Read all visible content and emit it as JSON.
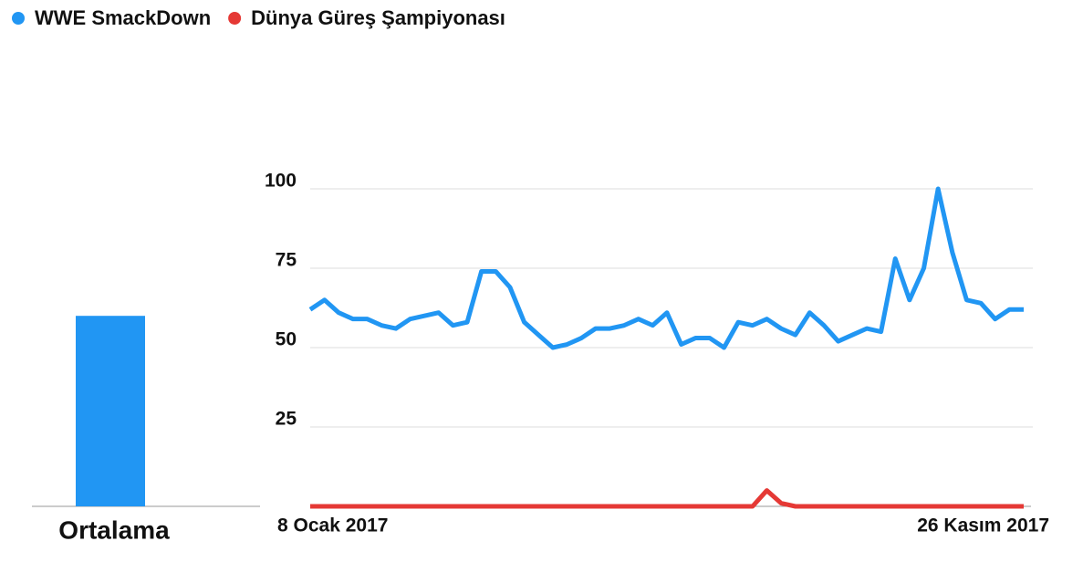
{
  "chart_data": [
    {
      "type": "bar",
      "categories": [
        "Ortalama"
      ],
      "ylim": [
        0,
        100
      ],
      "series": [
        {
          "color": "#2196f3",
          "values": [
            60
          ]
        },
        {
          "color": "#e53935",
          "values": [
            0
          ]
        }
      ]
    },
    {
      "type": "line",
      "categories": [
        "8 Ocak 2017",
        null,
        null,
        null,
        null,
        null,
        null,
        null,
        null,
        null,
        null,
        null,
        null,
        null,
        null,
        null,
        null,
        null,
        null,
        null,
        null,
        null,
        null,
        null,
        null,
        null,
        null,
        null,
        null,
        null,
        null,
        null,
        null,
        null,
        null,
        null,
        null,
        null,
        null,
        null,
        null,
        null,
        null,
        null,
        null,
        null,
        null,
        null,
        null,
        null,
        "26 Kasım 2017"
      ],
      "ylim": [
        0,
        100
      ],
      "yticks": [
        25,
        50,
        75,
        100
      ],
      "grid": true,
      "legend": "top-left",
      "series": [
        {
          "name": "WWE SmackDown",
          "color": "#2196f3",
          "values": [
            62,
            65,
            61,
            59,
            59,
            57,
            56,
            59,
            60,
            61,
            57,
            58,
            74,
            74,
            69,
            58,
            54,
            50,
            51,
            53,
            56,
            56,
            57,
            59,
            57,
            61,
            51,
            53,
            53,
            50,
            58,
            57,
            59,
            56,
            54,
            61,
            57,
            52,
            54,
            56,
            55,
            78,
            65,
            75,
            100,
            80,
            65,
            64,
            59,
            62,
            62
          ]
        },
        {
          "name": "Dünya Güreş Şampiyonası",
          "color": "#e53935",
          "values": [
            0,
            0,
            0,
            0,
            0,
            0,
            0,
            0,
            0,
            0,
            0,
            0,
            0,
            0,
            0,
            0,
            0,
            0,
            0,
            0,
            0,
            0,
            0,
            0,
            0,
            0,
            0,
            0,
            0,
            0,
            0,
            0,
            5,
            1,
            0,
            0,
            0,
            0,
            0,
            0,
            0,
            0,
            0,
            0,
            0,
            0,
            0,
            0,
            0,
            0,
            0
          ]
        }
      ]
    }
  ]
}
